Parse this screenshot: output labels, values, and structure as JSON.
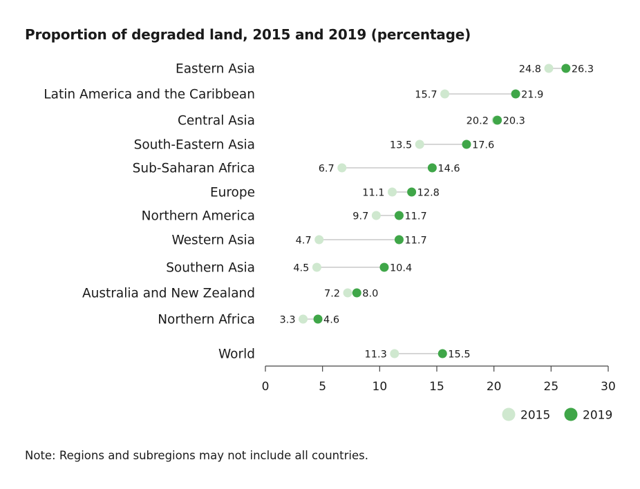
{
  "chart_data": {
    "type": "scatter",
    "subtype": "dumbbell",
    "title": "Proportion of degraded land, 2015 and 2019 (percentage)",
    "categories": [
      "Eastern Asia",
      "Latin America and the Caribbean",
      "Central Asia",
      "South-Eastern Asia",
      "Sub-Saharan Africa",
      "Europe",
      "Northern America",
      "Western Asia",
      "Southern Asia",
      "Australia and New Zealand",
      "Northern Africa",
      "World"
    ],
    "series": [
      {
        "name": "2015",
        "color": "#cfe8cf",
        "values": [
          24.8,
          15.7,
          20.2,
          13.5,
          6.7,
          11.1,
          9.7,
          4.7,
          4.5,
          7.2,
          3.3,
          11.3
        ],
        "labels": [
          "24.8",
          "15.7",
          "20.2",
          "13.5",
          "6.7",
          "11.1",
          "9.7",
          "4.7",
          "4.5",
          "7.2",
          "3.3",
          "11.3"
        ]
      },
      {
        "name": "2019",
        "color": "#3fa648",
        "values": [
          26.3,
          21.9,
          20.3,
          17.6,
          14.6,
          12.8,
          11.7,
          11.7,
          10.4,
          8.0,
          4.6,
          15.5
        ],
        "labels": [
          "26.3",
          "21.9",
          "20.3",
          "17.6",
          "14.6",
          "12.8",
          "11.7",
          "11.7",
          "10.4",
          "8.0",
          "4.6",
          "15.5"
        ]
      }
    ],
    "xlim": [
      0,
      30
    ],
    "xticks": [
      "0",
      "5",
      "10",
      "15",
      "20",
      "25",
      "30"
    ],
    "xlabel": "",
    "ylabel": "",
    "grid": false,
    "legend_position": "bottom-right",
    "connector_color": "#c8c8c8"
  },
  "note": "Note: Regions and subregions may not include all countries."
}
